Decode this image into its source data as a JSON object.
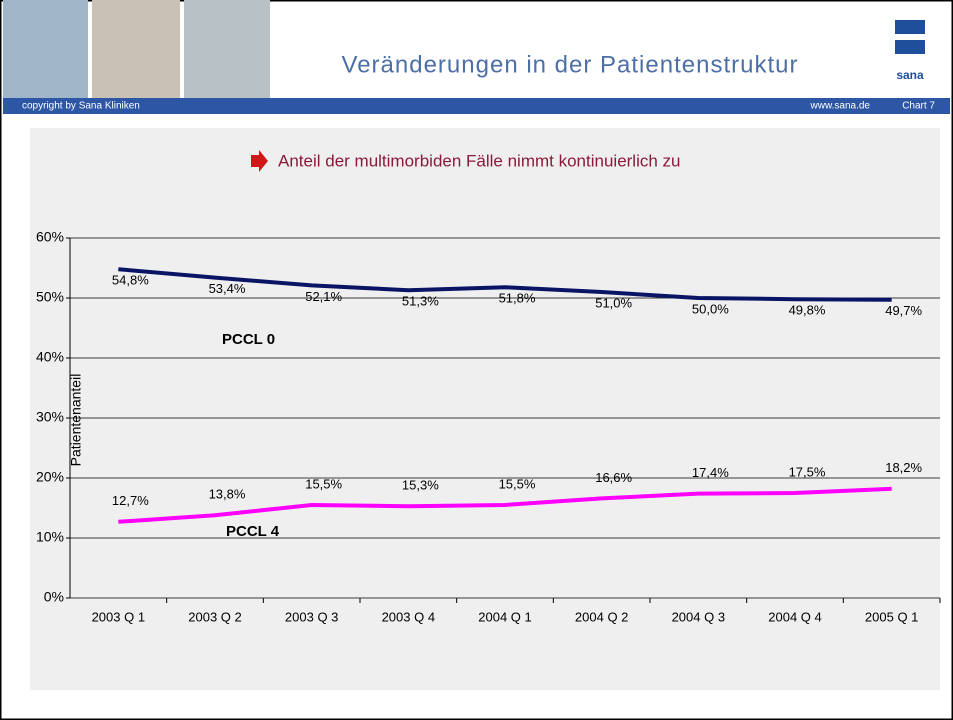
{
  "header": {
    "title": "Veränderungen in der Patientenstruktur",
    "copyright": "copyright by Sana Kliniken",
    "website": "www.sana.de",
    "chart_no": "Chart 7",
    "logo_text": "sana"
  },
  "chart_data": {
    "type": "line",
    "title": "Anteil der multimorbiden Fälle nimmt kontinuierlich zu",
    "y_label": "Patientenanteil",
    "categories": [
      "2003 Q 1",
      "2003 Q 2",
      "2003 Q 3",
      "2003 Q 4",
      "2004 Q 1",
      "2004 Q 2",
      "2004 Q 3",
      "2004 Q 4",
      "2005 Q 1"
    ],
    "series": [
      {
        "name": "PCCL 0",
        "color": "#0a1464",
        "values": [
          54.8,
          53.4,
          52.1,
          51.3,
          51.8,
          51.0,
          50.0,
          49.8,
          49.7
        ],
        "value_labels": [
          "54,8%",
          "53,4%",
          "52,1%",
          "51,3%",
          "51,8%",
          "51,0%",
          "50,0%",
          "49,8%",
          "49,7%"
        ]
      },
      {
        "name": "PCCL 4",
        "color": "#ff00ff",
        "values": [
          12.7,
          13.8,
          15.5,
          15.3,
          15.5,
          16.6,
          17.4,
          17.5,
          18.2
        ],
        "value_labels": [
          "12,7%",
          "13,8%",
          "15,5%",
          "15,3%",
          "15,5%",
          "16,6%",
          "17,4%",
          "17,5%",
          "18,2%"
        ]
      }
    ],
    "ylim": [
      0,
      60
    ],
    "yticks": [
      {
        "value": 0,
        "label": "0%"
      },
      {
        "value": 10,
        "label": "10%"
      },
      {
        "value": 20,
        "label": "20%"
      },
      {
        "value": 30,
        "label": "30%"
      },
      {
        "value": 40,
        "label": "40%"
      },
      {
        "value": 50,
        "label": "50%"
      },
      {
        "value": 60,
        "label": "60%"
      }
    ],
    "grid": true
  }
}
